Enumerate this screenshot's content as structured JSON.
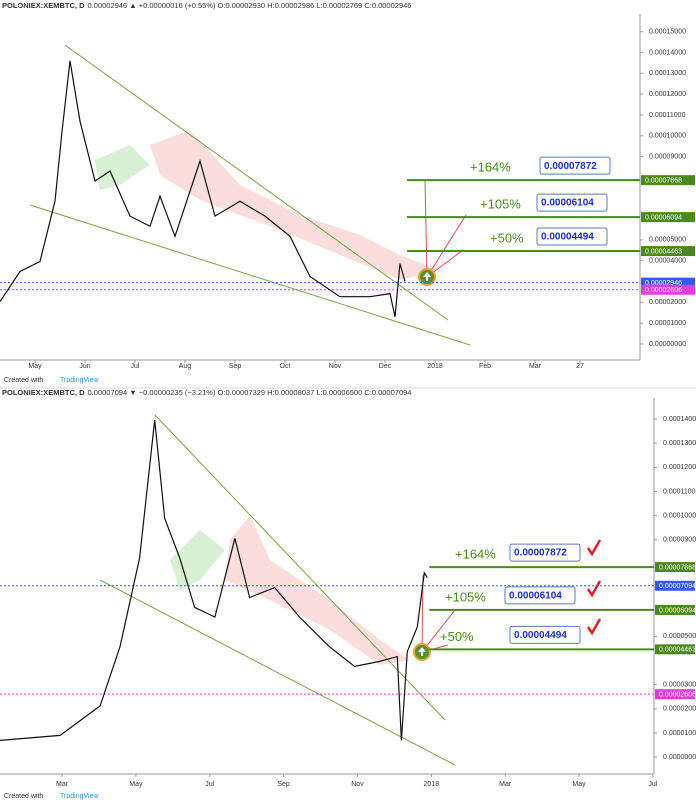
{
  "chart_data": [
    {
      "type": "line",
      "title": "POLONIEX:XEMBTC, D",
      "subtitle": "0.00002946 ▲ +0.00000016 (+0.55%) O:0.00002930 H:0.00002986 L:0.00002769 C:0.00002946",
      "credit": "Created with",
      "brand": "TradingView",
      "color": "#111111",
      "x": [
        -0.7,
        -0.3,
        0.1,
        0.4,
        0.54,
        0.7,
        0.9,
        1.2,
        1.5,
        1.9,
        2.3,
        2.5,
        2.8,
        3.3,
        3.6,
        4.1,
        4.6,
        5.1,
        5.5,
        6.1,
        6.7,
        7.1,
        7.2,
        7.3,
        7.4
      ],
      "values": [
        2.03e-05,
        3.48e-05,
        3.96e-05,
        6.86e-05,
        0.000102,
        0.000136,
        0.000107,
        7.83e-05,
        8.31e-05,
        6.14e-05,
        5.65e-05,
        7.1e-05,
        5.17e-05,
        8.79e-05,
        6.14e-05,
        6.86e-05,
        6.14e-05,
        5.17e-05,
        3.24e-05,
        2.27e-05,
        2.27e-05,
        2.42e-05,
        1.3e-05,
        3.86e-05,
        3e-05
      ],
      "xlim": [
        -0.7,
        12.1
      ],
      "xticks": [
        {
          "value": 0,
          "label": "May"
        },
        {
          "value": 1,
          "label": "Jun"
        },
        {
          "value": 2,
          "label": "Jul"
        },
        {
          "value": 3,
          "label": "Aug"
        },
        {
          "value": 4,
          "label": "Sep"
        },
        {
          "value": 5,
          "label": "Oct"
        },
        {
          "value": 6,
          "label": "Nov"
        },
        {
          "value": 7,
          "label": "Dec"
        },
        {
          "value": 8,
          "label": "2018"
        },
        {
          "value": 9,
          "label": "Feb"
        },
        {
          "value": 10,
          "label": "Mar"
        },
        {
          "value": 10.9,
          "label": "27"
        }
      ],
      "ylim": [
        -7.7e-06,
        0.0001585
      ],
      "yticks": [
        {
          "value": 0.00015,
          "label": "0.00015000"
        },
        {
          "value": 0.00014,
          "label": "0.00014000"
        },
        {
          "value": 0.00013,
          "label": "0.00013000"
        },
        {
          "value": 0.00012,
          "label": "0.00012000"
        },
        {
          "value": 0.00011,
          "label": "0.00011000"
        },
        {
          "value": 0.0001,
          "label": "0.00010000"
        },
        {
          "value": 9e-05,
          "label": "0.00009000"
        },
        {
          "value": 5e-05,
          "label": "0.00005000"
        },
        {
          "value": 4e-05,
          "label": "0.00004000"
        },
        {
          "value": 2e-05,
          "label": "0.00002000"
        },
        {
          "value": 1e-05,
          "label": "0.00001000"
        },
        {
          "value": 0,
          "label": "0.00000000"
        }
      ],
      "price_lines": [
        {
          "value": 7.868e-05,
          "label": "0.00007868",
          "color": "#4a8a1c",
          "dotted": false
        },
        {
          "value": 6.094e-05,
          "label": "0.00006094",
          "color": "#4a8a1c",
          "dotted": false
        },
        {
          "value": 4.463e-05,
          "label": "0.00004463",
          "color": "#4a8a1c",
          "dotted": false
        },
        {
          "value": 2.946e-05,
          "label": "0.00002946",
          "color": "#2f5bff",
          "dotted": true
        },
        {
          "value": 2.606e-05,
          "label": "0.00002606",
          "color": "#e03ce0",
          "dotted": true
        }
      ],
      "targets": [
        {
          "percent": "+164%",
          "price": "0.00007872"
        },
        {
          "percent": "+105%",
          "price": "0.00006104"
        },
        {
          "percent": "+50%",
          "price": "0.00004494"
        }
      ]
    },
    {
      "type": "line",
      "title": "POLONIEX:XEMBTC, D",
      "subtitle": "0.00007094 ▼ −0.00000235 (−3.21%) O:0.00007329 H:0.00008037 L:0.00006500 C:0.00007094",
      "credit": "Created with",
      "brand": "TradingView",
      "color": "#111111",
      "x": [
        -1.68,
        -0.05,
        1.03,
        1.57,
        2.1,
        2.51,
        2.78,
        3.19,
        3.59,
        4.14,
        4.68,
        5.08,
        5.76,
        6.43,
        7.24,
        7.92,
        8.59,
        9.08,
        9.19,
        9.35,
        9.62,
        9.81,
        9.89
      ],
      "values": [
        6.9e-06,
        9e-06,
        2.12e-05,
        4.57e-05,
        8.24e-05,
        0.0001396,
        9.88e-05,
        8.24e-05,
        6.2e-05,
        5.8e-05,
        9.06e-05,
        6.61e-05,
        7.02e-05,
        5.8e-05,
        4.57e-05,
        3.76e-05,
        3.96e-05,
        4.16e-05,
        6.9e-06,
        4.37e-05,
        5.39e-05,
        7.63e-05,
        7.43e-05
      ],
      "xlim": [
        -1.68,
        16.03
      ],
      "xticks": [
        {
          "value": 0,
          "label": "Mar"
        },
        {
          "value": 2,
          "label": "May"
        },
        {
          "value": 4,
          "label": "Jul"
        },
        {
          "value": 6,
          "label": "Sep"
        },
        {
          "value": 8,
          "label": "Nov"
        },
        {
          "value": 10,
          "label": "2018"
        },
        {
          "value": 12,
          "label": "Mar"
        },
        {
          "value": 14,
          "label": "May"
        },
        {
          "value": 16,
          "label": "Jul"
        }
      ],
      "ylim": [
        -7e-06,
        0.0001487
      ],
      "yticks": [
        {
          "value": 0.00014,
          "label": "0.00014000"
        },
        {
          "value": 0.00013,
          "label": "0.00013000"
        },
        {
          "value": 0.00012,
          "label": "0.00012000"
        },
        {
          "value": 0.00011,
          "label": "0.00011000"
        },
        {
          "value": 0.0001,
          "label": "0.00010000"
        },
        {
          "value": 9e-05,
          "label": "0.00009000"
        },
        {
          "value": 5e-05,
          "label": "0.00005000"
        },
        {
          "value": 3e-05,
          "label": "0.00003000"
        },
        {
          "value": 2e-05,
          "label": "0.00002000"
        },
        {
          "value": 1e-05,
          "label": "0.00001000"
        },
        {
          "value": 0,
          "label": "0.00000000"
        }
      ],
      "price_lines": [
        {
          "value": 7.868e-05,
          "label": "0.00007868",
          "color": "#4a8a1c",
          "dotted": false
        },
        {
          "value": 6.094e-05,
          "label": "0.00006094",
          "color": "#4a8a1c",
          "dotted": false
        },
        {
          "value": 4.463e-05,
          "label": "0.00004463",
          "color": "#4a8a1c",
          "dotted": false
        },
        {
          "value": 7.094e-05,
          "label": "0.00007094",
          "color": "#2f5bff",
          "dotted": true
        },
        {
          "value": 2.606e-05,
          "label": "0.00002606",
          "color": "#e03ce0",
          "dotted": true
        }
      ],
      "targets": [
        {
          "percent": "+164%",
          "price": "0.00007872"
        },
        {
          "percent": "+105%",
          "price": "0.00006104"
        },
        {
          "percent": "+50%",
          "price": "0.00004494"
        }
      ]
    }
  ]
}
